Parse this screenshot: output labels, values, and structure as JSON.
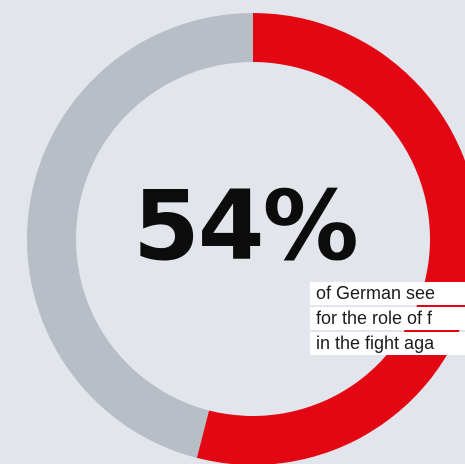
{
  "chart_data": {
    "type": "pie",
    "variant": "donut",
    "values": [
      54,
      46
    ],
    "colors": [
      "#e30613",
      "#b8bec6"
    ],
    "headline": "54%",
    "caption_lines": [
      "of German see",
      "for the role of f",
      "in the fight aga"
    ]
  },
  "colors": {
    "background": "#e2e6ec",
    "highlight": "#e30613",
    "remainder": "#b8bec6"
  }
}
